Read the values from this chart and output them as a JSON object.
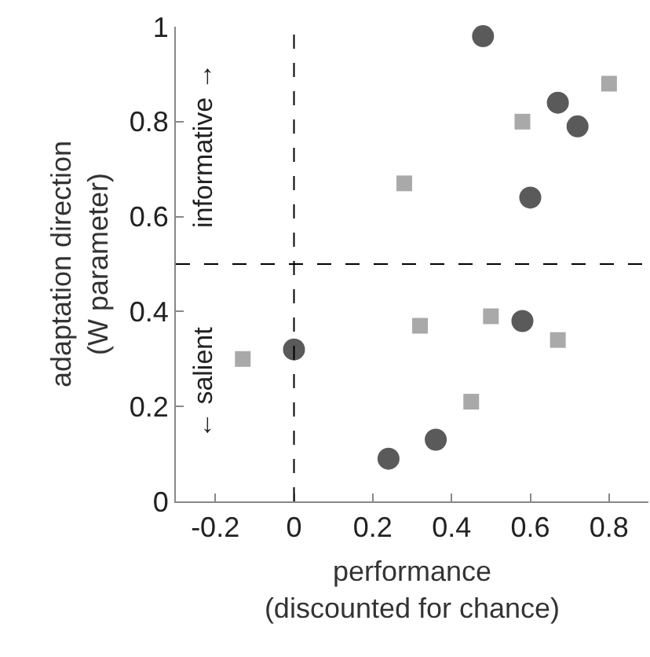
{
  "chart_data": {
    "type": "scatter",
    "xlabel": "performance\n(discounted for chance)",
    "ylabel": "adaptation direction\n(W parameter)",
    "xlim": [
      -0.3,
      0.9
    ],
    "xticks": [
      -0.2,
      0,
      0.2,
      0.4,
      0.6,
      0.8
    ],
    "ylim": [
      0,
      1
    ],
    "yticks": [
      0,
      0.2,
      0.4,
      0.6,
      0.8,
      1
    ],
    "series": [
      {
        "color": "#5a5a5a",
        "marker": "circle",
        "x": [
          0.48,
          0.67,
          0.72,
          0.6,
          0.58,
          0,
          0.36,
          0.24
        ],
        "values": [
          0.98,
          0.84,
          0.79,
          0.64,
          0.38,
          0.32,
          0.13,
          0.09
        ]
      },
      {
        "color": "#a9a9a9",
        "marker": "square",
        "x": [
          0.8,
          0.58,
          0.28,
          0.5,
          0.32,
          0.67,
          -0.13,
          0.45
        ],
        "values": [
          0.88,
          0.8,
          0.67,
          0.39,
          0.37,
          0.34,
          0.3,
          0.21
        ]
      }
    ],
    "ref_lines": [
      {
        "axis": "x",
        "value": 0,
        "line_style": "dashed",
        "color": "#000000"
      },
      {
        "axis": "y",
        "value": 0.5,
        "line_style": "dashed",
        "color": "#000000"
      }
    ],
    "annotations": [
      "informative →",
      "← salient"
    ]
  }
}
